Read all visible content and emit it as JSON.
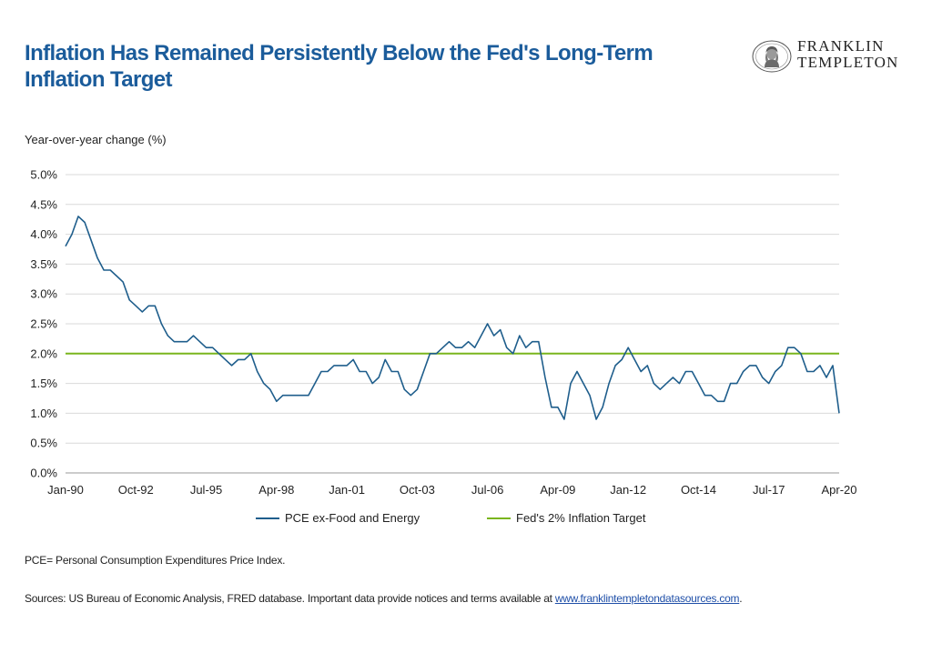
{
  "header": {
    "title_line1": "Inflation Has Remained Persistently Below the Fed's Long-Term",
    "title_line2": "Inflation Target",
    "logo": {
      "line1": "FRANKLIN",
      "line2": "TEMPLETON",
      "icon": "franklin-portrait-icon"
    }
  },
  "chart_data": {
    "type": "line",
    "ylabel": "Year-over-year change (%)",
    "ylim": [
      0,
      5
    ],
    "y_ticks": [
      "0.0%",
      "0.5%",
      "1.0%",
      "1.5%",
      "2.0%",
      "2.5%",
      "3.0%",
      "3.5%",
      "4.0%",
      "4.5%",
      "5.0%"
    ],
    "y_tick_values": [
      0,
      0.5,
      1.0,
      1.5,
      2.0,
      2.5,
      3.0,
      3.5,
      4.0,
      4.5,
      5.0
    ],
    "x_tick_labels": [
      "Jan-90",
      "Oct-92",
      "Jul-95",
      "Apr-98",
      "Jan-01",
      "Oct-03",
      "Jul-06",
      "Apr-09",
      "Jan-12",
      "Oct-14",
      "Jul-17",
      "Apr-20"
    ],
    "grid": "horizontal",
    "legend_position": "bottom",
    "series": [
      {
        "name": "PCE ex-Food and Energy",
        "color": "#1f5e8c",
        "x": [
          "1990-01",
          "1990-04",
          "1990-07",
          "1990-10",
          "1991-01",
          "1991-04",
          "1991-07",
          "1991-10",
          "1992-01",
          "1992-04",
          "1992-07",
          "1992-10",
          "1993-01",
          "1993-04",
          "1993-07",
          "1993-10",
          "1994-01",
          "1994-04",
          "1994-07",
          "1994-10",
          "1995-01",
          "1995-04",
          "1995-07",
          "1995-10",
          "1996-01",
          "1996-04",
          "1996-07",
          "1996-10",
          "1997-01",
          "1997-04",
          "1997-07",
          "1997-10",
          "1998-01",
          "1998-04",
          "1998-07",
          "1998-10",
          "1999-01",
          "1999-04",
          "1999-07",
          "1999-10",
          "2000-01",
          "2000-04",
          "2000-07",
          "2000-10",
          "2001-01",
          "2001-04",
          "2001-07",
          "2001-10",
          "2002-01",
          "2002-04",
          "2002-07",
          "2002-10",
          "2003-01",
          "2003-04",
          "2003-07",
          "2003-10",
          "2004-01",
          "2004-04",
          "2004-07",
          "2004-10",
          "2005-01",
          "2005-04",
          "2005-07",
          "2005-10",
          "2006-01",
          "2006-04",
          "2006-07",
          "2006-10",
          "2007-01",
          "2007-04",
          "2007-07",
          "2007-10",
          "2008-01",
          "2008-04",
          "2008-07",
          "2008-10",
          "2009-01",
          "2009-04",
          "2009-07",
          "2009-10",
          "2010-01",
          "2010-04",
          "2010-07",
          "2010-10",
          "2011-01",
          "2011-04",
          "2011-07",
          "2011-10",
          "2012-01",
          "2012-04",
          "2012-07",
          "2012-10",
          "2013-01",
          "2013-04",
          "2013-07",
          "2013-10",
          "2014-01",
          "2014-04",
          "2014-07",
          "2014-10",
          "2015-01",
          "2015-04",
          "2015-07",
          "2015-10",
          "2016-01",
          "2016-04",
          "2016-07",
          "2016-10",
          "2017-01",
          "2017-04",
          "2017-07",
          "2017-10",
          "2018-01",
          "2018-04",
          "2018-07",
          "2018-10",
          "2019-01",
          "2019-04",
          "2019-07",
          "2019-10",
          "2020-01",
          "2020-04"
        ],
        "values": [
          3.8,
          4.0,
          4.3,
          4.2,
          3.9,
          3.6,
          3.4,
          3.4,
          3.3,
          3.2,
          2.9,
          2.8,
          2.7,
          2.8,
          2.8,
          2.5,
          2.3,
          2.2,
          2.2,
          2.2,
          2.3,
          2.2,
          2.1,
          2.1,
          2.0,
          1.9,
          1.8,
          1.9,
          1.9,
          2.0,
          1.7,
          1.5,
          1.4,
          1.2,
          1.3,
          1.3,
          1.3,
          1.3,
          1.3,
          1.5,
          1.7,
          1.7,
          1.8,
          1.8,
          1.8,
          1.9,
          1.7,
          1.7,
          1.5,
          1.6,
          1.9,
          1.7,
          1.7,
          1.4,
          1.3,
          1.4,
          1.7,
          2.0,
          2.0,
          2.1,
          2.2,
          2.1,
          2.1,
          2.2,
          2.1,
          2.3,
          2.5,
          2.3,
          2.4,
          2.1,
          2.0,
          2.3,
          2.1,
          2.2,
          2.2,
          1.6,
          1.1,
          1.1,
          0.9,
          1.5,
          1.7,
          1.5,
          1.3,
          0.9,
          1.1,
          1.5,
          1.8,
          1.9,
          2.1,
          1.9,
          1.7,
          1.8,
          1.5,
          1.4,
          1.5,
          1.6,
          1.5,
          1.7,
          1.7,
          1.5,
          1.3,
          1.3,
          1.2,
          1.2,
          1.5,
          1.5,
          1.7,
          1.8,
          1.8,
          1.6,
          1.5,
          1.7,
          1.8,
          2.1,
          2.1,
          2.0,
          1.7,
          1.7,
          1.8,
          1.6,
          1.8,
          1.0
        ]
      },
      {
        "name": "Fed's 2% Inflation Target",
        "color": "#7ab51d",
        "constant": 2.0
      }
    ]
  },
  "footnote": "PCE= Personal Consumption Expenditures Price Index.",
  "sources": {
    "text": "Sources: US Bureau of Economic Analysis, FRED database. Important data provide notices and terms available at",
    "link": "www.franklintempletondatasources.com",
    "suffix": "."
  }
}
